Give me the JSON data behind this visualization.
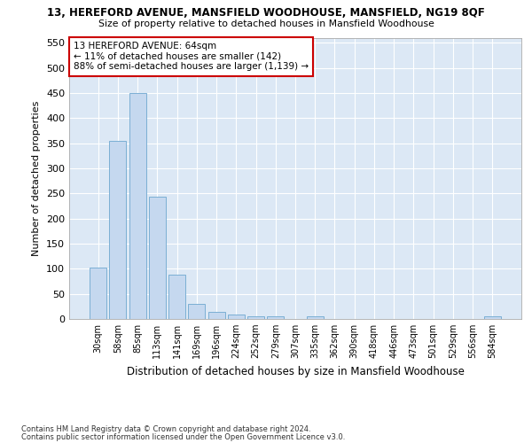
{
  "title1": "13, HEREFORD AVENUE, MANSFIELD WOODHOUSE, MANSFIELD, NG19 8QF",
  "title2": "Size of property relative to detached houses in Mansfield Woodhouse",
  "xlabel": "Distribution of detached houses by size in Mansfield Woodhouse",
  "ylabel": "Number of detached properties",
  "annotation_line1": "13 HEREFORD AVENUE: 64sqm",
  "annotation_line2": "← 11% of detached houses are smaller (142)",
  "annotation_line3": "88% of semi-detached houses are larger (1,139) →",
  "footnote1": "Contains HM Land Registry data © Crown copyright and database right 2024.",
  "footnote2": "Contains public sector information licensed under the Open Government Licence v3.0.",
  "bar_color": "#c5d8ef",
  "bar_edge_color": "#7bafd4",
  "annotation_box_color": "#ffffff",
  "annotation_box_edge_color": "#cc0000",
  "background_color": "#dce8f5",
  "fig_background_color": "#ffffff",
  "grid_color": "#ffffff",
  "categories": [
    "30sqm",
    "58sqm",
    "85sqm",
    "113sqm",
    "141sqm",
    "169sqm",
    "196sqm",
    "224sqm",
    "252sqm",
    "279sqm",
    "307sqm",
    "335sqm",
    "362sqm",
    "390sqm",
    "418sqm",
    "446sqm",
    "473sqm",
    "501sqm",
    "529sqm",
    "556sqm",
    "584sqm"
  ],
  "values": [
    103,
    355,
    449,
    243,
    88,
    30,
    14,
    9,
    5,
    5,
    0,
    5,
    0,
    0,
    0,
    0,
    0,
    0,
    0,
    0,
    5
  ],
  "ylim": [
    0,
    560
  ],
  "yticks": [
    0,
    50,
    100,
    150,
    200,
    250,
    300,
    350,
    400,
    450,
    500,
    550
  ],
  "figsize": [
    6.0,
    5.0
  ],
  "dpi": 100
}
